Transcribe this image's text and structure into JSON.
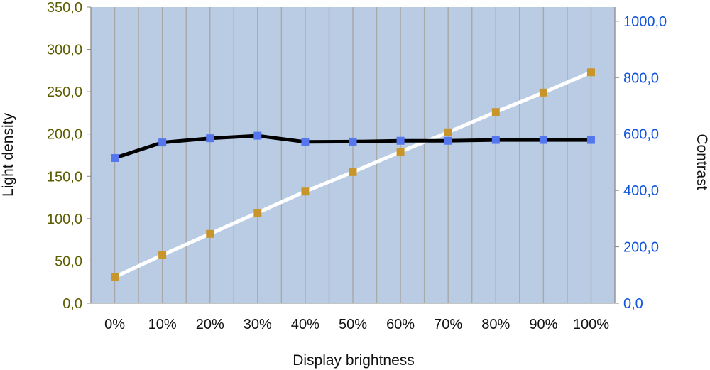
{
  "chart_data": {
    "type": "line",
    "xlabel": "Display brightness",
    "ylabel": "Light density",
    "y2label": "Contrast",
    "categories": [
      "0%",
      "10%",
      "20%",
      "30%",
      "40%",
      "50%",
      "60%",
      "70%",
      "80%",
      "90%",
      "100%"
    ],
    "ylim": [
      0,
      350
    ],
    "y2lim": [
      0,
      1050
    ],
    "yticks": [
      "0,0",
      "50,0",
      "100,0",
      "150,0",
      "200,0",
      "250,0",
      "300,0",
      "350,0"
    ],
    "ytick_values": [
      0,
      50,
      100,
      150,
      200,
      250,
      300,
      350
    ],
    "y2ticks": [
      "0,0",
      "200,0",
      "400,0",
      "600,0",
      "800,0",
      "1000,0"
    ],
    "y2tick_values": [
      0,
      200,
      400,
      600,
      800,
      1000
    ],
    "grid": true,
    "series": [
      {
        "axis": "left",
        "values": [
          31,
          57,
          82,
          107,
          132,
          155,
          179,
          202,
          226,
          249,
          273
        ],
        "line_color": "#ffffff",
        "marker_color": "#c8952a"
      },
      {
        "axis": "right",
        "values": [
          515,
          570,
          585,
          594,
          572,
          573,
          576,
          576,
          579,
          579,
          579
        ],
        "line_color": "#000000",
        "marker_color": "#5577ee"
      }
    ],
    "colors": {
      "plot_background": "#b9cce4",
      "grid": "#a8a8a8",
      "left_tick": "#5c5c00",
      "right_tick": "#1155dd"
    }
  }
}
